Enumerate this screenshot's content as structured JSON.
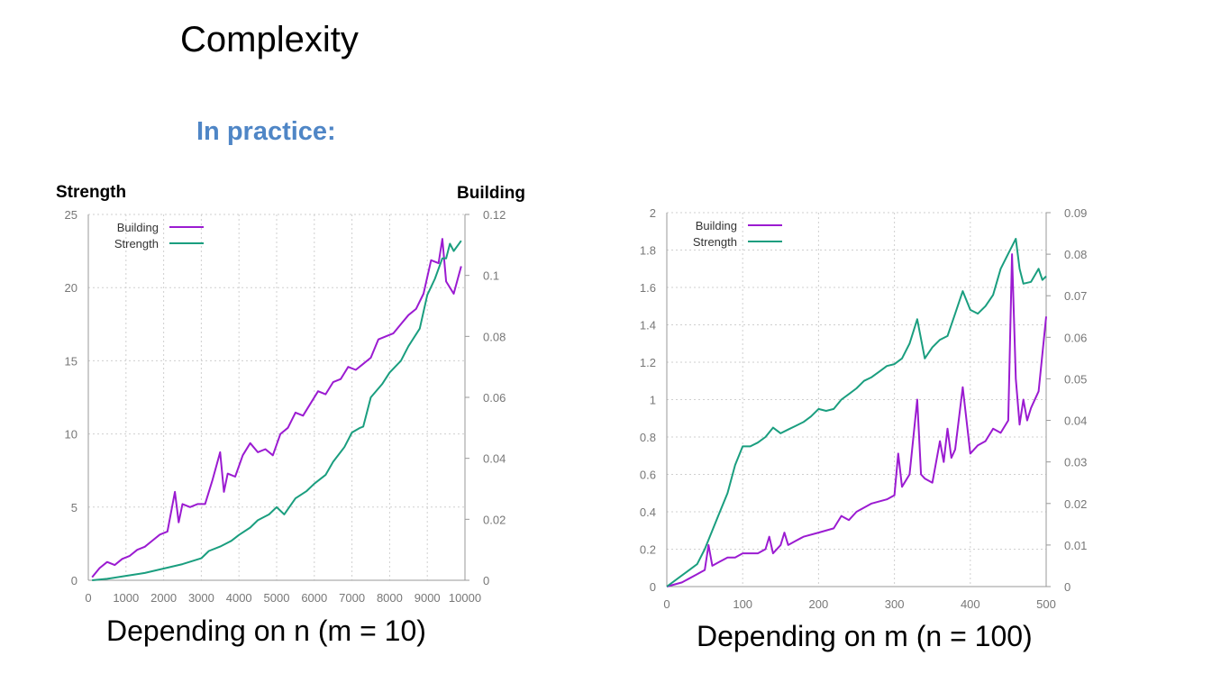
{
  "slide": {
    "title": "Complexity",
    "subtitle": "In practice:",
    "left_y_title": "Strength",
    "right_y_title": "Building",
    "caption_left": "Depending on n (m = 10)",
    "caption_right": "Depending on m (n = 100)"
  },
  "colors": {
    "building": "#9b1bd1",
    "strength": "#1a9e7f",
    "grid": "#cfcfcf",
    "axis_text": "#777777",
    "subtitle": "#4f86c6"
  },
  "chart_data": [
    {
      "type": "line",
      "x_ticks": [
        "0",
        "1000",
        "2000",
        "3000",
        "4000",
        "5000",
        "6000",
        "7000",
        "8000",
        "9000",
        "10000"
      ],
      "xlim": [
        0,
        10000
      ],
      "ylim_left": [
        0,
        25
      ],
      "y_ticks_left": [
        "0",
        "5",
        "10",
        "15",
        "20",
        "25"
      ],
      "ylim_right": [
        0,
        0.12
      ],
      "y_ticks_right": [
        "0",
        "0.02",
        "0.04",
        "0.06",
        "0.08",
        "0.1",
        "0.12"
      ],
      "legend_position": "top-left",
      "grid": true,
      "series": [
        {
          "name": "Building",
          "axis": "right",
          "x": [
            100,
            300,
            500,
            700,
            900,
            1100,
            1300,
            1500,
            1700,
            1900,
            2100,
            2300,
            2400,
            2500,
            2700,
            2900,
            3100,
            3300,
            3500,
            3600,
            3700,
            3900,
            4100,
            4300,
            4500,
            4700,
            4900,
            5100,
            5300,
            5500,
            5700,
            5900,
            6100,
            6300,
            6500,
            6700,
            6900,
            7100,
            7300,
            7500,
            7700,
            7900,
            8100,
            8300,
            8500,
            8700,
            8900,
            9100,
            9300,
            9400,
            9500,
            9700,
            9900
          ],
          "y": [
            0.001,
            0.004,
            0.006,
            0.005,
            0.007,
            0.008,
            0.01,
            0.011,
            0.013,
            0.015,
            0.016,
            0.029,
            0.019,
            0.025,
            0.024,
            0.025,
            0.025,
            0.033,
            0.042,
            0.029,
            0.035,
            0.034,
            0.041,
            0.045,
            0.042,
            0.043,
            0.041,
            0.048,
            0.05,
            0.055,
            0.054,
            0.058,
            0.062,
            0.061,
            0.065,
            0.066,
            0.07,
            0.069,
            0.071,
            0.073,
            0.079,
            0.08,
            0.081,
            0.084,
            0.087,
            0.089,
            0.094,
            0.105,
            0.104,
            0.112,
            0.098,
            0.094,
            0.103
          ]
        },
        {
          "name": "Strength",
          "axis": "left",
          "x": [
            100,
            500,
            1000,
            1500,
            2000,
            2500,
            3000,
            3200,
            3500,
            3800,
            4000,
            4300,
            4500,
            4800,
            5000,
            5200,
            5500,
            5800,
            6000,
            6300,
            6500,
            6800,
            7000,
            7200,
            7300,
            7500,
            7800,
            8000,
            8300,
            8500,
            8800,
            9000,
            9200,
            9400,
            9500,
            9600,
            9700,
            9900
          ],
          "y": [
            0.0,
            0.1,
            0.3,
            0.5,
            0.8,
            1.1,
            1.5,
            2.0,
            2.3,
            2.7,
            3.1,
            3.6,
            4.1,
            4.5,
            5.0,
            4.5,
            5.6,
            6.1,
            6.6,
            7.2,
            8.1,
            9.1,
            10.1,
            10.4,
            10.5,
            12.5,
            13.4,
            14.2,
            15.0,
            16.0,
            17.2,
            19.5,
            20.6,
            22.0,
            22.0,
            23.0,
            22.5,
            23.2
          ]
        }
      ]
    },
    {
      "type": "line",
      "x_ticks": [
        "0",
        "100",
        "200",
        "300",
        "400",
        "500"
      ],
      "xlim": [
        0,
        500
      ],
      "ylim_left": [
        0,
        2
      ],
      "y_ticks_left": [
        "0",
        "0.2",
        "0.4",
        "0.6",
        "0.8",
        "1",
        "1.2",
        "1.4",
        "1.6",
        "1.8",
        "2"
      ],
      "ylim_right": [
        0,
        0.09
      ],
      "y_ticks_right": [
        "0",
        "0.01",
        "0.02",
        "0.03",
        "0.04",
        "0.05",
        "0.06",
        "0.07",
        "0.08",
        "0.09"
      ],
      "legend_position": "top-left",
      "grid": true,
      "series": [
        {
          "name": "Building",
          "axis": "right",
          "x": [
            0,
            20,
            40,
            50,
            55,
            60,
            70,
            80,
            90,
            100,
            110,
            120,
            130,
            135,
            140,
            150,
            155,
            160,
            170,
            180,
            200,
            220,
            230,
            240,
            250,
            270,
            290,
            300,
            305,
            310,
            320,
            330,
            335,
            340,
            350,
            360,
            365,
            370,
            375,
            380,
            390,
            400,
            410,
            420,
            430,
            440,
            450,
            455,
            460,
            465,
            470,
            475,
            480,
            490,
            500
          ],
          "y": [
            0.0,
            0.001,
            0.003,
            0.004,
            0.01,
            0.005,
            0.006,
            0.007,
            0.007,
            0.008,
            0.008,
            0.008,
            0.009,
            0.012,
            0.008,
            0.01,
            0.013,
            0.01,
            0.011,
            0.012,
            0.013,
            0.014,
            0.017,
            0.016,
            0.018,
            0.02,
            0.021,
            0.022,
            0.032,
            0.024,
            0.027,
            0.045,
            0.027,
            0.026,
            0.025,
            0.035,
            0.03,
            0.038,
            0.031,
            0.033,
            0.048,
            0.032,
            0.034,
            0.035,
            0.038,
            0.037,
            0.04,
            0.08,
            0.05,
            0.039,
            0.045,
            0.04,
            0.043,
            0.047,
            0.065
          ]
        },
        {
          "name": "Strength",
          "axis": "left",
          "x": [
            0,
            20,
            40,
            50,
            60,
            70,
            80,
            90,
            100,
            110,
            120,
            130,
            140,
            150,
            160,
            170,
            180,
            190,
            200,
            210,
            220,
            230,
            240,
            250,
            260,
            270,
            280,
            290,
            300,
            310,
            320,
            330,
            340,
            350,
            360,
            370,
            380,
            390,
            400,
            410,
            420,
            430,
            440,
            450,
            455,
            460,
            465,
            470,
            480,
            490,
            495,
            500
          ],
          "y": [
            0.0,
            0.06,
            0.12,
            0.2,
            0.3,
            0.4,
            0.5,
            0.65,
            0.75,
            0.75,
            0.77,
            0.8,
            0.85,
            0.82,
            0.84,
            0.86,
            0.88,
            0.91,
            0.95,
            0.94,
            0.95,
            1.0,
            1.03,
            1.06,
            1.1,
            1.12,
            1.15,
            1.18,
            1.19,
            1.22,
            1.3,
            1.43,
            1.22,
            1.28,
            1.32,
            1.34,
            1.46,
            1.58,
            1.48,
            1.46,
            1.5,
            1.56,
            1.7,
            1.78,
            1.82,
            1.86,
            1.7,
            1.62,
            1.63,
            1.7,
            1.64,
            1.66
          ]
        }
      ]
    }
  ]
}
